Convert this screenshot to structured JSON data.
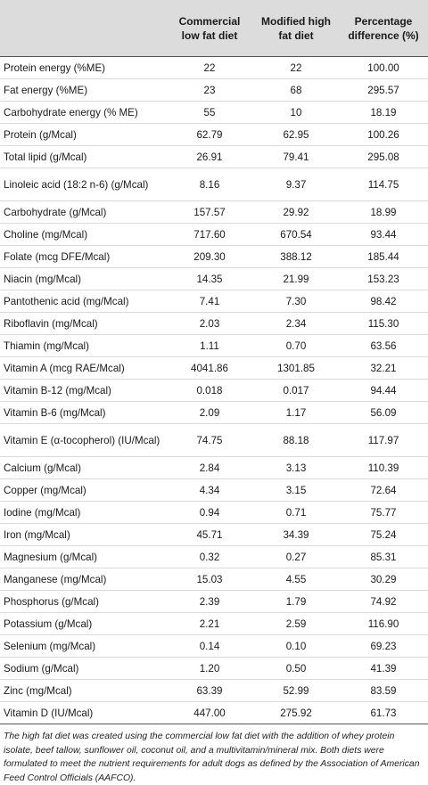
{
  "headers": [
    "",
    "Commercial low fat diet",
    "Modified high fat diet",
    "Percentage difference (%)"
  ],
  "rows": [
    {
      "label": "Protein energy (%ME)",
      "low": "22",
      "high": "22",
      "pct": "100.00"
    },
    {
      "label": "Fat energy (%ME)",
      "low": "23",
      "high": "68",
      "pct": "295.57"
    },
    {
      "label": "Carbohydrate energy (% ME)",
      "low": "55",
      "high": "10",
      "pct": "18.19"
    },
    {
      "label": "Protein (g/Mcal)",
      "low": "62.79",
      "high": "62.95",
      "pct": "100.26"
    },
    {
      "label": "Total lipid (g/Mcal)",
      "low": "26.91",
      "high": "79.41",
      "pct": "295.08"
    },
    {
      "label": "Linoleic acid (18:2 n-6) (g/Mcal)",
      "low": "8.16",
      "high": "9.37",
      "pct": "114.75",
      "wrap": true
    },
    {
      "label": "Carbohydrate (g/Mcal)",
      "low": "157.57",
      "high": "29.92",
      "pct": "18.99"
    },
    {
      "label": "Choline (mg/Mcal)",
      "low": "717.60",
      "high": "670.54",
      "pct": "93.44"
    },
    {
      "label": "Folate (mcg DFE/Mcal)",
      "low": "209.30",
      "high": "388.12",
      "pct": "185.44"
    },
    {
      "label": "Niacin (mg/Mcal)",
      "low": "14.35",
      "high": "21.99",
      "pct": "153.23"
    },
    {
      "label": "Pantothenic acid (mg/Mcal)",
      "low": "7.41",
      "high": "7.30",
      "pct": "98.42"
    },
    {
      "label": "Riboflavin (mg/Mcal)",
      "low": "2.03",
      "high": "2.34",
      "pct": "115.30"
    },
    {
      "label": "Thiamin (mg/Mcal)",
      "low": "1.11",
      "high": "0.70",
      "pct": "63.56"
    },
    {
      "label": "Vitamin A (mcg RAE/Mcal)",
      "low": "4041.86",
      "high": "1301.85",
      "pct": "32.21"
    },
    {
      "label": "Vitamin B-12 (mg/Mcal)",
      "low": "0.018",
      "high": "0.017",
      "pct": "94.44"
    },
    {
      "label": "Vitamin B-6 (mg/Mcal)",
      "low": "2.09",
      "high": "1.17",
      "pct": "56.09"
    },
    {
      "label": "Vitamin E (α-tocopherol) (IU/Mcal)",
      "low": "74.75",
      "high": "88.18",
      "pct": "117.97",
      "wrap": true
    },
    {
      "label": "Calcium (g/Mcal)",
      "low": "2.84",
      "high": "3.13",
      "pct": "110.39"
    },
    {
      "label": "Copper (mg/Mcal)",
      "low": "4.34",
      "high": "3.15",
      "pct": "72.64"
    },
    {
      "label": "Iodine (mg/Mcal)",
      "low": "0.94",
      "high": "0.71",
      "pct": "75.77"
    },
    {
      "label": "Iron (mg/Mcal)",
      "low": "45.71",
      "high": "34.39",
      "pct": "75.24"
    },
    {
      "label": "Magnesium (g/Mcal)",
      "low": "0.32",
      "high": "0.27",
      "pct": "85.31"
    },
    {
      "label": "Manganese (mg/Mcal)",
      "low": "15.03",
      "high": "4.55",
      "pct": "30.29"
    },
    {
      "label": "Phosphorus (g/Mcal)",
      "low": "2.39",
      "high": "1.79",
      "pct": "74.92"
    },
    {
      "label": "Potassium (g/Mcal)",
      "low": "2.21",
      "high": "2.59",
      "pct": "116.90"
    },
    {
      "label": "Selenium (mg/Mcal)",
      "low": "0.14",
      "high": "0.10",
      "pct": "69.23"
    },
    {
      "label": "Sodium (g/Mcal)",
      "low": "1.20",
      "high": "0.50",
      "pct": "41.39"
    },
    {
      "label": "Zinc (mg/Mcal)",
      "low": "63.39",
      "high": "52.99",
      "pct": "83.59"
    },
    {
      "label": "Vitamin D (IU/Mcal)",
      "low": "447.00",
      "high": "275.92",
      "pct": "61.73"
    }
  ],
  "footnote": "The high fat diet was created using the commercial low fat diet with the addition of whey protein isolate, beef tallow, sunflower oil, coconut oil, and a multivitamin/mineral mix. Both diets were formulated to meet the nutrient requirements for adult dogs as defined by the Association of American Feed Control Officials (AAFCO)."
}
